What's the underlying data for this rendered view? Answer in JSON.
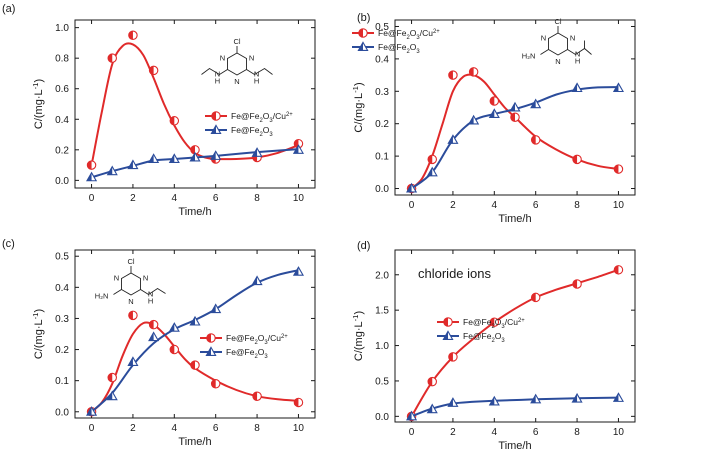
{
  "colors": {
    "red": "#e02a2a",
    "blue": "#2b4c9b",
    "axis": "#1a1a1a"
  },
  "chart_data": [
    {
      "type": "line",
      "panel_label": "(a)",
      "xlabel": "Time/h",
      "ylabel": "C/(mg·L⁻¹)",
      "xlim": [
        -0.8,
        10.8
      ],
      "ylim": [
        -0.05,
        1.05
      ],
      "xticks": [
        0,
        2,
        4,
        6,
        8,
        10
      ],
      "yticks": [
        0.0,
        0.2,
        0.4,
        0.6,
        0.8,
        1.0
      ],
      "ytick_labels": [
        "0.0",
        "0.2",
        "0.4",
        "0.6",
        "0.8",
        "1.0"
      ],
      "legend_position": "right-middle",
      "structure_labels": [
        "Cl",
        "N",
        "N",
        "N",
        "H",
        "N",
        "N",
        "H"
      ],
      "series": [
        {
          "name": "Fe@Fe₂O₃/Cu²⁺",
          "color": "red",
          "marker": "circle",
          "x": [
            0,
            1,
            2,
            3,
            4,
            5,
            6,
            8,
            10
          ],
          "y": [
            0.1,
            0.8,
            0.95,
            0.72,
            0.39,
            0.2,
            0.14,
            0.15,
            0.24
          ],
          "curve": [
            [
              0,
              0.1
            ],
            [
              0.5,
              0.45
            ],
            [
              1,
              0.76
            ],
            [
              1.5,
              0.88
            ],
            [
              2,
              0.89
            ],
            [
              2.5,
              0.82
            ],
            [
              3,
              0.67
            ],
            [
              3.5,
              0.5
            ],
            [
              4,
              0.36
            ],
            [
              4.5,
              0.25
            ],
            [
              5,
              0.18
            ],
            [
              5.5,
              0.15
            ],
            [
              6,
              0.14
            ],
            [
              7,
              0.14
            ],
            [
              8,
              0.15
            ],
            [
              9,
              0.18
            ],
            [
              10,
              0.23
            ]
          ]
        },
        {
          "name": "Fe@Fe₂O₃",
          "color": "blue",
          "marker": "triangle",
          "x": [
            0,
            1,
            2,
            3,
            4,
            5,
            6,
            8,
            10
          ],
          "y": [
            0.02,
            0.06,
            0.1,
            0.14,
            0.14,
            0.15,
            0.16,
            0.18,
            0.2
          ],
          "curve": [
            [
              0,
              0.02
            ],
            [
              1,
              0.06
            ],
            [
              2,
              0.095
            ],
            [
              3,
              0.13
            ],
            [
              4,
              0.14
            ],
            [
              5,
              0.15
            ],
            [
              6,
              0.16
            ],
            [
              8,
              0.185
            ],
            [
              10,
              0.205
            ]
          ]
        }
      ]
    },
    {
      "type": "line",
      "panel_label": "(b)",
      "xlabel": "Time/h",
      "ylabel": "C/(mg·L⁻¹)",
      "xlim": [
        -0.8,
        10.8
      ],
      "ylim": [
        -0.02,
        0.52
      ],
      "xticks": [
        0,
        2,
        4,
        6,
        8,
        10
      ],
      "yticks": [
        0.0,
        0.1,
        0.2,
        0.3,
        0.4,
        0.5
      ],
      "ytick_labels": [
        "0.0",
        "0.1",
        "0.2",
        "0.3",
        "0.4",
        "0.5"
      ],
      "legend_position": "top-left",
      "structure_labels": [
        "Cl",
        "N",
        "N",
        "N",
        "H₂N",
        "N",
        "H"
      ],
      "series": [
        {
          "name": "Fe@Fe₂O₃/Cu²⁺",
          "color": "red",
          "marker": "circle",
          "x": [
            0,
            1,
            2,
            3,
            4,
            5,
            6,
            8,
            10
          ],
          "y": [
            0.0,
            0.09,
            0.35,
            0.36,
            0.27,
            0.22,
            0.15,
            0.09,
            0.06
          ],
          "curve": [
            [
              0,
              0.0
            ],
            [
              0.5,
              0.03
            ],
            [
              1,
              0.1
            ],
            [
              1.5,
              0.2
            ],
            [
              2,
              0.3
            ],
            [
              2.5,
              0.345
            ],
            [
              3,
              0.35
            ],
            [
              3.5,
              0.33
            ],
            [
              4,
              0.29
            ],
            [
              4.5,
              0.25
            ],
            [
              5,
              0.22
            ],
            [
              6,
              0.16
            ],
            [
              7,
              0.12
            ],
            [
              8,
              0.09
            ],
            [
              9,
              0.07
            ],
            [
              10,
              0.06
            ]
          ]
        },
        {
          "name": "Fe@Fe₂O₃",
          "color": "blue",
          "marker": "triangle",
          "x": [
            0,
            1,
            2,
            3,
            4,
            5,
            6,
            8,
            10
          ],
          "y": [
            0.0,
            0.05,
            0.15,
            0.21,
            0.23,
            0.25,
            0.26,
            0.31,
            0.31
          ],
          "curve": [
            [
              0,
              0.0
            ],
            [
              1,
              0.05
            ],
            [
              2,
              0.15
            ],
            [
              3,
              0.21
            ],
            [
              4,
              0.23
            ],
            [
              5,
              0.245
            ],
            [
              6,
              0.265
            ],
            [
              7,
              0.29
            ],
            [
              8,
              0.305
            ],
            [
              9,
              0.312
            ],
            [
              10,
              0.313
            ]
          ]
        }
      ]
    },
    {
      "type": "line",
      "panel_label": "(c)",
      "xlabel": "Time/h",
      "ylabel": "C/(mg·L⁻¹)",
      "xlim": [
        -0.8,
        10.8
      ],
      "ylim": [
        -0.02,
        0.52
      ],
      "xticks": [
        0,
        2,
        4,
        6,
        8,
        10
      ],
      "yticks": [
        0.0,
        0.1,
        0.2,
        0.3,
        0.4,
        0.5
      ],
      "ytick_labels": [
        "0.0",
        "0.1",
        "0.2",
        "0.3",
        "0.4",
        "0.5"
      ],
      "legend_position": "right-middle",
      "structure_labels": [
        "Cl",
        "N",
        "N",
        "N",
        "H₂N",
        "N",
        "H"
      ],
      "series": [
        {
          "name": "Fe@Fe₂O₃/Cu²⁺",
          "color": "red",
          "marker": "circle",
          "x": [
            0,
            1,
            2,
            3,
            4,
            5,
            6,
            8,
            10
          ],
          "y": [
            0.0,
            0.11,
            0.31,
            0.28,
            0.2,
            0.15,
            0.09,
            0.05,
            0.03
          ],
          "curve": [
            [
              0,
              0.0
            ],
            [
              0.5,
              0.03
            ],
            [
              1,
              0.09
            ],
            [
              1.5,
              0.18
            ],
            [
              2,
              0.25
            ],
            [
              2.5,
              0.285
            ],
            [
              3,
              0.28
            ],
            [
              3.5,
              0.25
            ],
            [
              4,
              0.21
            ],
            [
              4.5,
              0.17
            ],
            [
              5,
              0.14
            ],
            [
              6,
              0.1
            ],
            [
              7,
              0.07
            ],
            [
              8,
              0.05
            ],
            [
              9,
              0.04
            ],
            [
              10,
              0.035
            ]
          ]
        },
        {
          "name": "Fe@Fe₂O₃",
          "color": "blue",
          "marker": "triangle",
          "x": [
            0,
            1,
            2,
            3,
            4,
            5,
            6,
            8,
            10
          ],
          "y": [
            0.0,
            0.05,
            0.16,
            0.24,
            0.27,
            0.29,
            0.33,
            0.42,
            0.45
          ],
          "curve": [
            [
              0,
              0.0
            ],
            [
              1,
              0.06
            ],
            [
              2,
              0.15
            ],
            [
              3,
              0.22
            ],
            [
              4,
              0.265
            ],
            [
              5,
              0.295
            ],
            [
              6,
              0.33
            ],
            [
              7,
              0.375
            ],
            [
              8,
              0.415
            ],
            [
              9,
              0.44
            ],
            [
              10,
              0.455
            ]
          ]
        }
      ]
    },
    {
      "type": "line",
      "panel_label": "(d)",
      "xlabel": "Time/h",
      "ylabel": "C/(mg·L⁻¹)",
      "annotation": "chloride ions",
      "xlim": [
        -0.8,
        10.8
      ],
      "ylim": [
        -0.08,
        2.35
      ],
      "xticks": [
        0,
        2,
        4,
        6,
        8,
        10
      ],
      "yticks": [
        0.0,
        0.5,
        1.0,
        1.5,
        2.0
      ],
      "ytick_labels": [
        "0.0",
        "0.5",
        "1.0",
        "1.5",
        "2.0"
      ],
      "legend_position": "right-middle",
      "series": [
        {
          "name": "Fe@Fe₂O₃/Cu²⁺",
          "color": "red",
          "marker": "circle",
          "x": [
            0,
            1,
            2,
            4,
            6,
            8,
            10
          ],
          "y": [
            0.0,
            0.49,
            0.84,
            1.33,
            1.68,
            1.87,
            2.07
          ],
          "curve": [
            [
              0,
              0.0
            ],
            [
              1,
              0.49
            ],
            [
              2,
              0.84
            ],
            [
              3,
              1.1
            ],
            [
              4,
              1.33
            ],
            [
              5,
              1.52
            ],
            [
              6,
              1.68
            ],
            [
              7,
              1.79
            ],
            [
              8,
              1.88
            ],
            [
              9,
              1.97
            ],
            [
              10,
              2.07
            ]
          ]
        },
        {
          "name": "Fe@Fe₂O₃",
          "color": "blue",
          "marker": "triangle",
          "x": [
            0,
            1,
            2,
            4,
            6,
            8,
            10
          ],
          "y": [
            0.0,
            0.1,
            0.19,
            0.21,
            0.24,
            0.25,
            0.26
          ],
          "curve": [
            [
              0,
              0.0
            ],
            [
              1,
              0.11
            ],
            [
              2,
              0.18
            ],
            [
              3,
              0.205
            ],
            [
              4,
              0.22
            ],
            [
              6,
              0.24
            ],
            [
              8,
              0.255
            ],
            [
              10,
              0.265
            ]
          ]
        }
      ]
    }
  ]
}
